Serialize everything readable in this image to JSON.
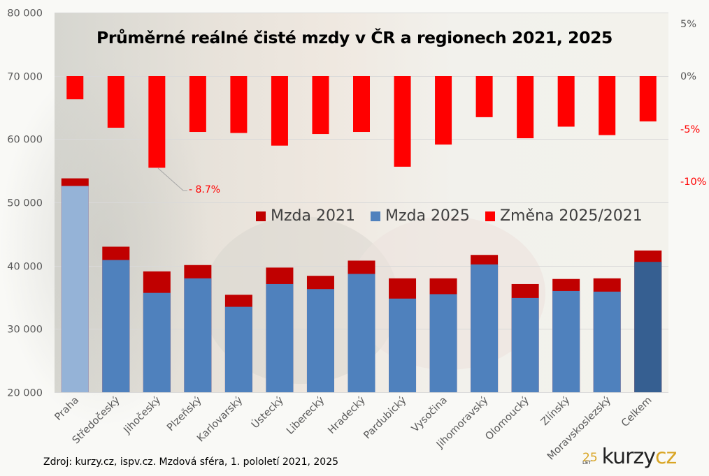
{
  "chart_data": {
    "type": "bar",
    "title": "Průměrné reálné čisté mzdy v ČR a regionech 2021, 2025",
    "categories": [
      "Praha",
      "Středočeský",
      "Jihočeský",
      "Plzeňský",
      "Karlovarský",
      "Ústecký",
      "Liberecký",
      "Hradecký",
      "Pardubický",
      "Vysočina",
      "Jihomoravský",
      "Olomoucký",
      "Zlínský",
      "Moravskoslezský",
      "Celkem"
    ],
    "series": [
      {
        "name": "Mzda 2021",
        "axis": "left",
        "color": "#C00000",
        "values": [
          53800,
          43000,
          39100,
          40100,
          35400,
          39700,
          38400,
          40800,
          38000,
          38000,
          41700,
          37100,
          37900,
          38000,
          42400
        ]
      },
      {
        "name": "Mzda 2025",
        "axis": "left",
        "color": "#4F81BD",
        "highlight_colors": {
          "Praha": "#95B3D7",
          "Celkem": "#365F91"
        },
        "values": [
          52600,
          40900,
          35700,
          38000,
          33500,
          37100,
          36300,
          38700,
          34800,
          35500,
          40200,
          34900,
          36000,
          35900,
          40600
        ]
      },
      {
        "name": "Změna 2025/2021",
        "axis": "right",
        "unit": "%",
        "color": "#FF0000",
        "values": [
          -2.2,
          -4.9,
          -8.7,
          -5.3,
          -5.4,
          -6.6,
          -5.5,
          -5.3,
          -8.6,
          -6.5,
          -3.9,
          -5.9,
          -4.8,
          -5.6,
          -4.3
        ]
      }
    ],
    "left_axis": {
      "ylim": [
        20000,
        80000
      ],
      "ticks": [
        20000,
        30000,
        40000,
        50000,
        60000,
        70000,
        80000
      ],
      "tick_labels": [
        "20 000",
        "30 000",
        "40 000",
        "50 000",
        "60 000",
        "70 000",
        "80 000"
      ],
      "gridlines": true
    },
    "right_axis": {
      "ylim": [
        -30,
        6
      ],
      "ticks": [
        5,
        0,
        -5,
        -10
      ],
      "tick_labels": [
        "5%",
        "0%",
        "-5%",
        "-10%"
      ],
      "tick_label_colors": [
        "#595959",
        "#595959",
        "#FF0000",
        "#FF0000"
      ]
    },
    "annotations": [
      {
        "category": "Jihočeský",
        "series": "Změna 2025/2021",
        "text": "- 8.7%"
      }
    ],
    "legend": {
      "position": "center-right",
      "entries": [
        {
          "label": "Mzda 2021",
          "color": "#C00000"
        },
        {
          "label": "Mzda 2025",
          "color": "#4F81BD"
        },
        {
          "label": "Změna 2025/2021",
          "color": "#FF0000"
        }
      ]
    },
    "xlabel": "",
    "ylabel": ""
  },
  "footer": {
    "source": "Zdroj: kurzy.cz, ispv.cz. Mzdová sféra, 1. pololetí 2021, 2025"
  },
  "logo": {
    "years": "25",
    "let": "LET",
    "brand_a": "kurzy",
    "brand_b": "cz"
  }
}
